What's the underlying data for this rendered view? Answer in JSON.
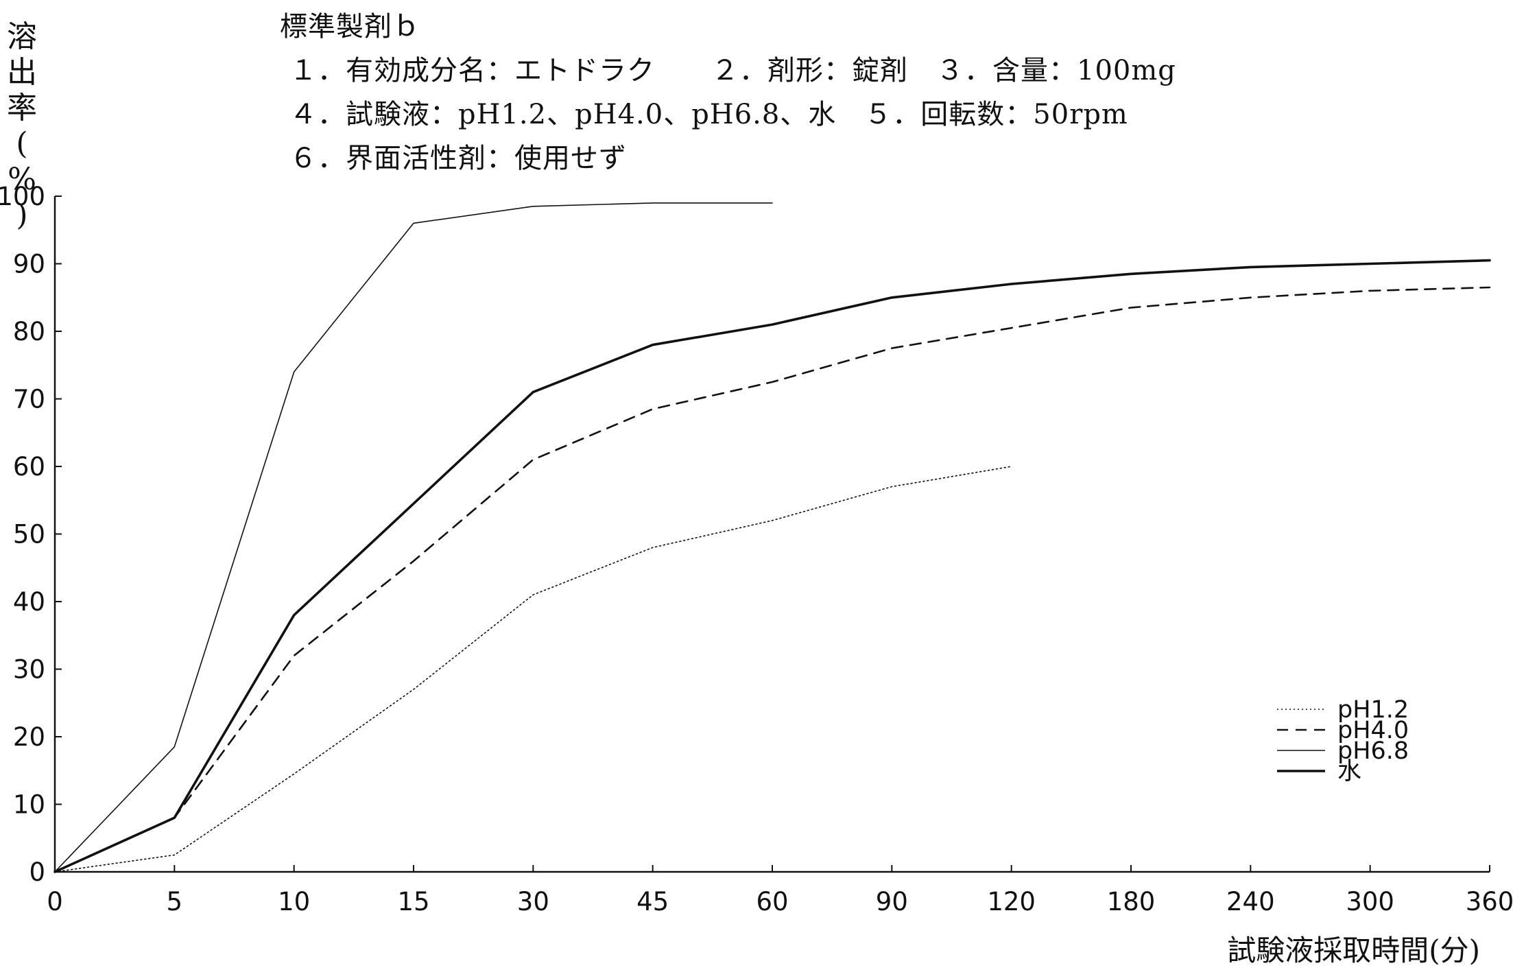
{
  "header": {
    "title": "標準製剤ｂ",
    "line1": "１．有効成分名：エトドラク　　２．剤形：錠剤　３．含量：100mg",
    "line2": "４．試験液：pH1.2、pH4.0、pH6.8、水　５．回転数：50rpm",
    "line3": "６．界面活性剤：使用せず"
  },
  "chart_data": {
    "type": "line",
    "title": "標準製剤ｂ",
    "xlabel": "試験液採取時間(分)",
    "ylabel_chars": [
      "溶",
      "出",
      "率",
      "(",
      "%",
      ")"
    ],
    "categories": [
      "0",
      "5",
      "10",
      "15",
      "30",
      "45",
      "60",
      "90",
      "120",
      "180",
      "240",
      "300",
      "360"
    ],
    "ylim": [
      0,
      100
    ],
    "yticks": [
      0,
      10,
      20,
      30,
      40,
      50,
      60,
      70,
      80,
      90,
      100
    ],
    "grid": false,
    "legend_position": "bottom-right",
    "series": [
      {
        "name": "pH1.2",
        "style": "dotted",
        "values": [
          0,
          2.5,
          14.5,
          27,
          41,
          48,
          52,
          57,
          60,
          null,
          null,
          null,
          null
        ]
      },
      {
        "name": "pH4.0",
        "style": "dashed",
        "values": [
          0,
          8,
          32,
          46,
          61,
          68.5,
          72.5,
          77.5,
          80.5,
          83.5,
          85,
          86,
          86.5
        ]
      },
      {
        "name": "pH6.8",
        "style": "thin",
        "values": [
          0,
          18.5,
          74,
          96,
          98.5,
          99,
          99,
          null,
          null,
          null,
          null,
          null,
          null
        ]
      },
      {
        "name": "水",
        "style": "thick",
        "values": [
          0,
          8,
          38,
          54.5,
          71,
          78,
          81,
          85,
          87,
          88.5,
          89.5,
          90,
          90.5
        ]
      }
    ]
  }
}
